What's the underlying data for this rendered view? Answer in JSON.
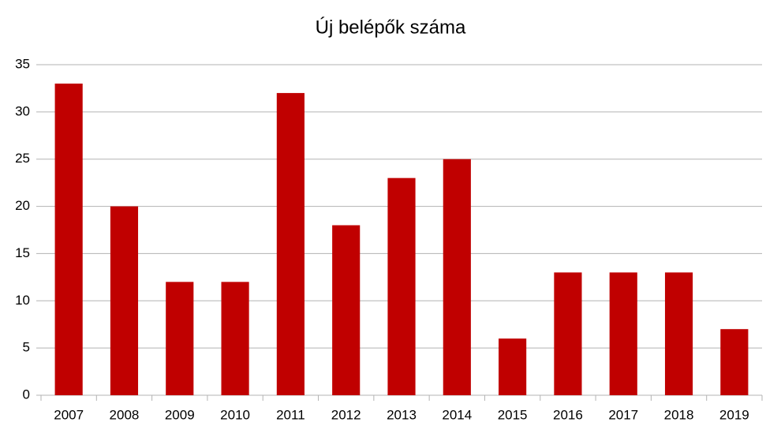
{
  "chart_data": {
    "type": "bar",
    "title": "Új belépők száma",
    "categories": [
      "2007",
      "2008",
      "2009",
      "2010",
      "2011",
      "2012",
      "2013",
      "2014",
      "2015",
      "2016",
      "2017",
      "2018",
      "2019"
    ],
    "values": [
      33,
      20,
      12,
      12,
      32,
      18,
      23,
      25,
      6,
      13,
      13,
      13,
      7
    ],
    "color": "#c00000",
    "ylim": [
      0,
      35
    ],
    "yticks": [
      0,
      5,
      10,
      15,
      20,
      25,
      30,
      35
    ],
    "grid": true
  }
}
